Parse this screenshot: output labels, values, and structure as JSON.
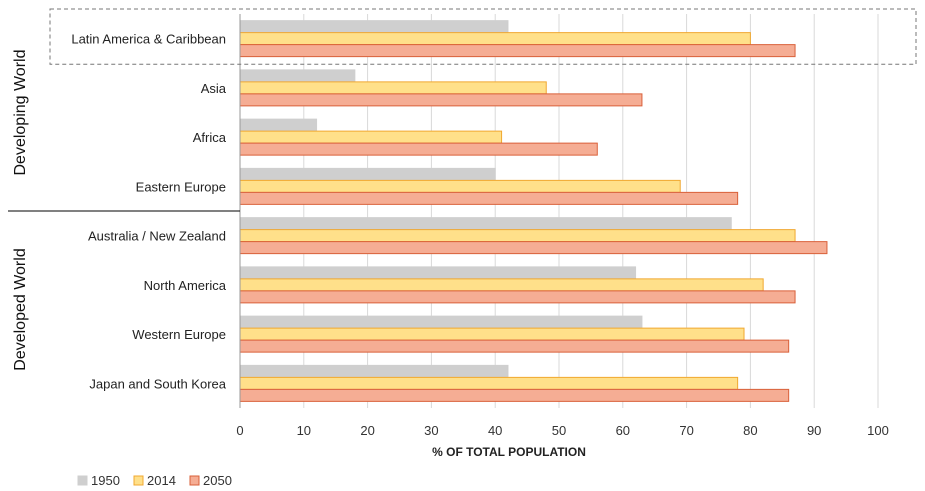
{
  "chart_data": {
    "type": "bar",
    "orientation": "horizontal",
    "xlabel": "% OF TOTAL POPULATION",
    "xlim": [
      0,
      100
    ],
    "xticks": [
      "0",
      "10",
      "20",
      "30",
      "40",
      "50",
      "60",
      "70",
      "80",
      "90",
      "100"
    ],
    "grid": "vertical",
    "legend_position": "bottom-left",
    "categories": [
      "Latin America & Caribbean",
      "Asia",
      "Africa",
      "Eastern Europe",
      "Australia / New Zealand",
      "North America",
      "Western Europe",
      "Japan and South Korea"
    ],
    "groups": [
      {
        "label": "Developing World",
        "categories": [
          "Latin America & Caribbean",
          "Asia",
          "Africa",
          "Eastern Europe"
        ]
      },
      {
        "label": "Developed World",
        "categories": [
          "Australia / New Zealand",
          "North America",
          "Western Europe",
          "Japan and South Korea"
        ]
      }
    ],
    "highlighted_category": "Latin America & Caribbean",
    "series": [
      {
        "name": "1950",
        "color": "#cfcfcf",
        "stroke": "#cfcfcf",
        "values": [
          42,
          18,
          12,
          40,
          77,
          62,
          63,
          42
        ]
      },
      {
        "name": "2014",
        "color": "#ffe08a",
        "stroke": "#f0a830",
        "values": [
          80,
          48,
          41,
          69,
          87,
          82,
          79,
          78
        ]
      },
      {
        "name": "2050",
        "color": "#f5ad94",
        "stroke": "#d9603a",
        "values": [
          87,
          63,
          56,
          78,
          92,
          87,
          86,
          86
        ]
      }
    ]
  }
}
